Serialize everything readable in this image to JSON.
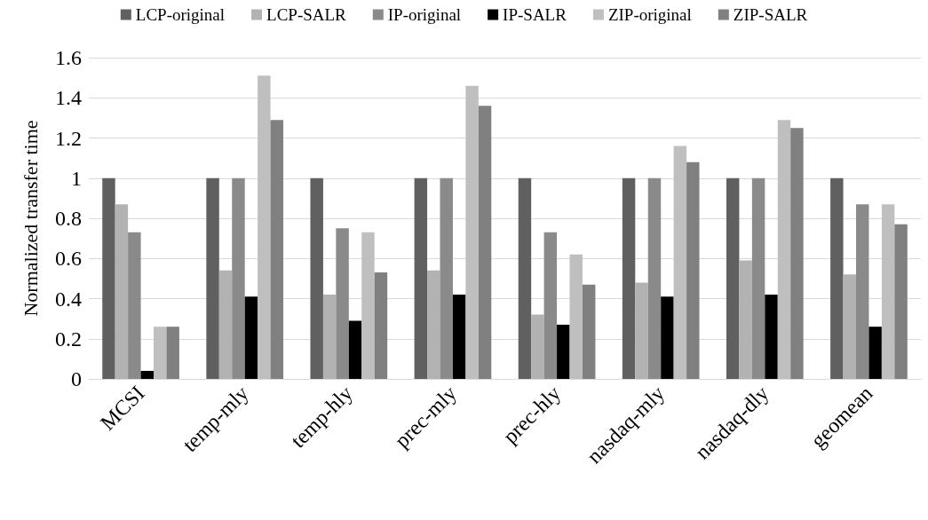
{
  "chart_data": {
    "type": "bar",
    "ylabel": "Normalized transfer time",
    "categories": [
      "MCSI",
      "temp-mly",
      "temp-hly",
      "prec-mly",
      "prec-hly",
      "nasdaq-mly",
      "nasdaq-dly",
      "geomean"
    ],
    "series": [
      {
        "name": "LCP-original",
        "color": "#606060",
        "values": [
          1,
          1,
          1,
          1,
          1,
          1,
          1,
          1
        ]
      },
      {
        "name": "LCP-SALR",
        "color": "#b2b2b2",
        "values": [
          0.87,
          0.54,
          0.42,
          0.54,
          0.32,
          0.48,
          0.59,
          0.52
        ]
      },
      {
        "name": "IP-original",
        "color": "#8a8a8a",
        "values": [
          0.73,
          1,
          0.75,
          1,
          0.73,
          1,
          1,
          0.87
        ]
      },
      {
        "name": "IP-SALR",
        "color": "#000000",
        "values": [
          0.04,
          0.41,
          0.29,
          0.42,
          0.27,
          0.41,
          0.42,
          0.26
        ]
      },
      {
        "name": "ZIP-original",
        "color": "#bfbfbf",
        "values": [
          0.26,
          1.51,
          0.73,
          1.46,
          0.62,
          1.16,
          1.29,
          0.87
        ]
      },
      {
        "name": "ZIP-SALR",
        "color": "#808080",
        "values": [
          0.26,
          1.29,
          0.53,
          1.36,
          0.47,
          1.08,
          1.25,
          0.77
        ]
      }
    ],
    "ylim": [
      0,
      1.6
    ],
    "yticks": [
      0,
      0.2,
      0.4,
      0.6,
      0.8,
      1,
      1.2,
      1.4,
      1.6
    ],
    "grid": "y",
    "legend": "top"
  }
}
